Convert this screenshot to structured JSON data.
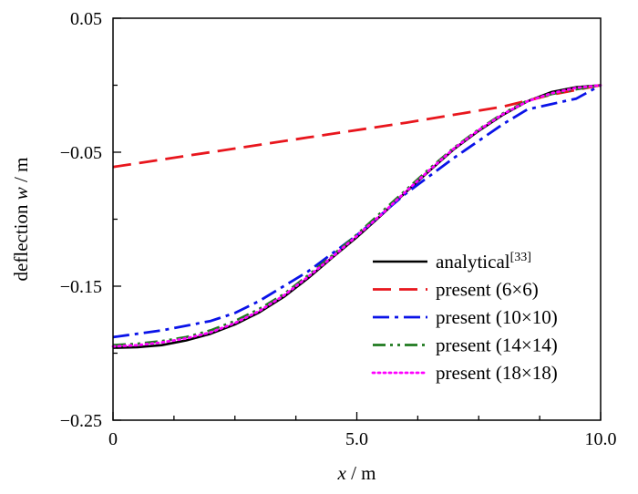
{
  "chart_data": {
    "type": "line",
    "xlabel_var": "x",
    "xlabel_unit": " / m",
    "ylabel_prefix": "deflection ",
    "ylabel_var": "w",
    "ylabel_unit": " / m",
    "xlim": [
      0,
      10
    ],
    "ylim": [
      -0.25,
      0.05
    ],
    "x_ticks": [
      {
        "value": 0,
        "label": "0"
      },
      {
        "value": 5,
        "label": "5.0"
      },
      {
        "value": 10,
        "label": "10.0"
      }
    ],
    "y_ticks": [
      {
        "value": 0.05,
        "label": "0.05"
      },
      {
        "value": -0.05,
        "label": "−0.05"
      },
      {
        "value": -0.15,
        "label": "−0.15"
      },
      {
        "value": -0.25,
        "label": "−0.25"
      }
    ],
    "grid": false,
    "legend_position": "bottom-right",
    "series": [
      {
        "name": "analytical",
        "name_superscript": "[33]",
        "color": "#000000",
        "dash": "solid",
        "x": [
          0,
          0.5,
          1,
          1.5,
          2,
          2.5,
          3,
          3.5,
          4,
          4.5,
          5,
          5.5,
          6,
          6.5,
          7,
          7.5,
          8,
          8.5,
          9,
          9.5,
          10
        ],
        "y": [
          -0.196,
          -0.1955,
          -0.194,
          -0.1905,
          -0.1855,
          -0.1785,
          -0.1695,
          -0.158,
          -0.144,
          -0.1285,
          -0.1135,
          -0.097,
          -0.08,
          -0.0635,
          -0.0475,
          -0.034,
          -0.022,
          -0.012,
          -0.005,
          -0.0015,
          0.0
        ]
      },
      {
        "name": "present (6×6)",
        "color": "#e8161d",
        "dash": "dashed",
        "x": [
          0,
          2,
          4,
          6,
          8,
          9,
          10
        ],
        "y": [
          -0.061,
          -0.05,
          -0.039,
          -0.028,
          -0.016,
          -0.007,
          0.0
        ]
      },
      {
        "name": "present (10×10)",
        "color": "#0a13e8",
        "dash": "dashdot",
        "x": [
          0,
          1,
          2,
          2.5,
          3,
          4,
          5,
          6,
          7,
          8,
          8.5,
          9,
          9.5,
          10
        ],
        "y": [
          -0.188,
          -0.183,
          -0.176,
          -0.17,
          -0.161,
          -0.139,
          -0.112,
          -0.081,
          -0.054,
          -0.029,
          -0.018,
          -0.014,
          -0.01,
          0.0
        ]
      },
      {
        "name": "present (14×14)",
        "color": "#1e7a1e",
        "dash": "dashdotdot",
        "x": [
          0,
          0.5,
          1,
          1.5,
          2,
          2.5,
          3,
          3.5,
          4,
          4.5,
          5,
          5.5,
          6,
          6.5,
          7,
          7.5,
          8,
          8.5,
          9,
          9.5,
          10
        ],
        "y": [
          -0.194,
          -0.193,
          -0.191,
          -0.188,
          -0.183,
          -0.176,
          -0.167,
          -0.156,
          -0.142,
          -0.127,
          -0.1115,
          -0.095,
          -0.0785,
          -0.062,
          -0.0465,
          -0.033,
          -0.021,
          -0.0115,
          -0.0065,
          -0.003,
          0.0
        ]
      },
      {
        "name": "present (18×18)",
        "color": "#ff00ff",
        "dash": "dotted",
        "x": [
          0,
          0.5,
          1,
          1.5,
          2,
          2.5,
          3,
          3.5,
          4,
          4.5,
          5,
          5.5,
          6,
          6.5,
          7,
          7.5,
          8,
          8.5,
          9,
          9.5,
          10
        ],
        "y": [
          -0.195,
          -0.194,
          -0.192,
          -0.189,
          -0.1845,
          -0.1775,
          -0.1685,
          -0.157,
          -0.143,
          -0.128,
          -0.1125,
          -0.0965,
          -0.0795,
          -0.063,
          -0.047,
          -0.0335,
          -0.0215,
          -0.012,
          -0.006,
          -0.002,
          0.0
        ]
      }
    ]
  }
}
